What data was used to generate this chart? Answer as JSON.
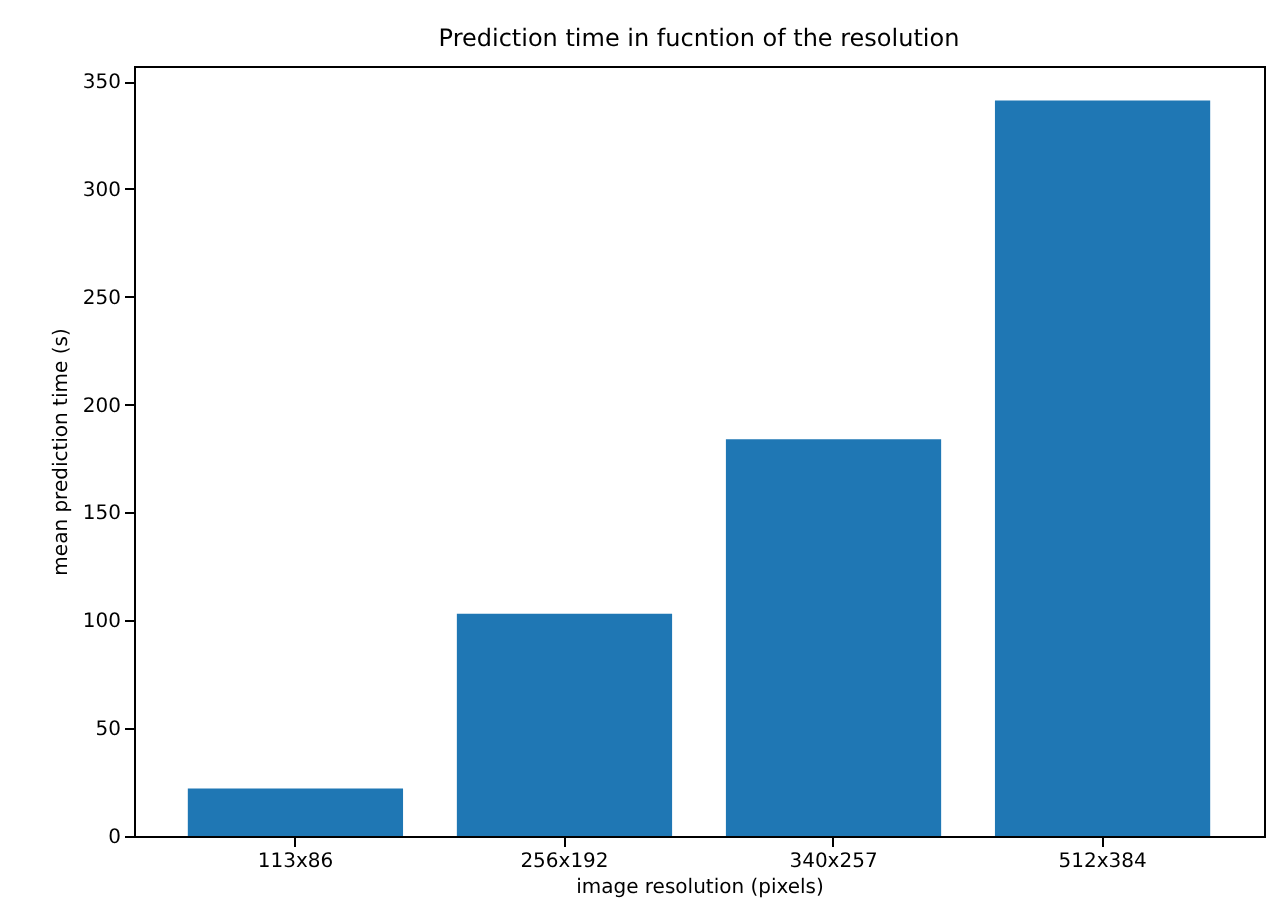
{
  "chart_data": {
    "type": "bar",
    "title": "Prediction time in fucntion of the resolution",
    "xlabel": "image resolution (pixels)",
    "ylabel": "mean prediction time (s)",
    "categories": [
      "113x86",
      "256x192",
      "340x257",
      "512x384"
    ],
    "values": [
      22,
      103,
      184,
      341
    ],
    "color": "#1f77b4",
    "ylim": [
      0,
      357
    ],
    "yticks": [
      0,
      50,
      100,
      150,
      200,
      250,
      300,
      350
    ],
    "grid": false,
    "legend": false
  }
}
